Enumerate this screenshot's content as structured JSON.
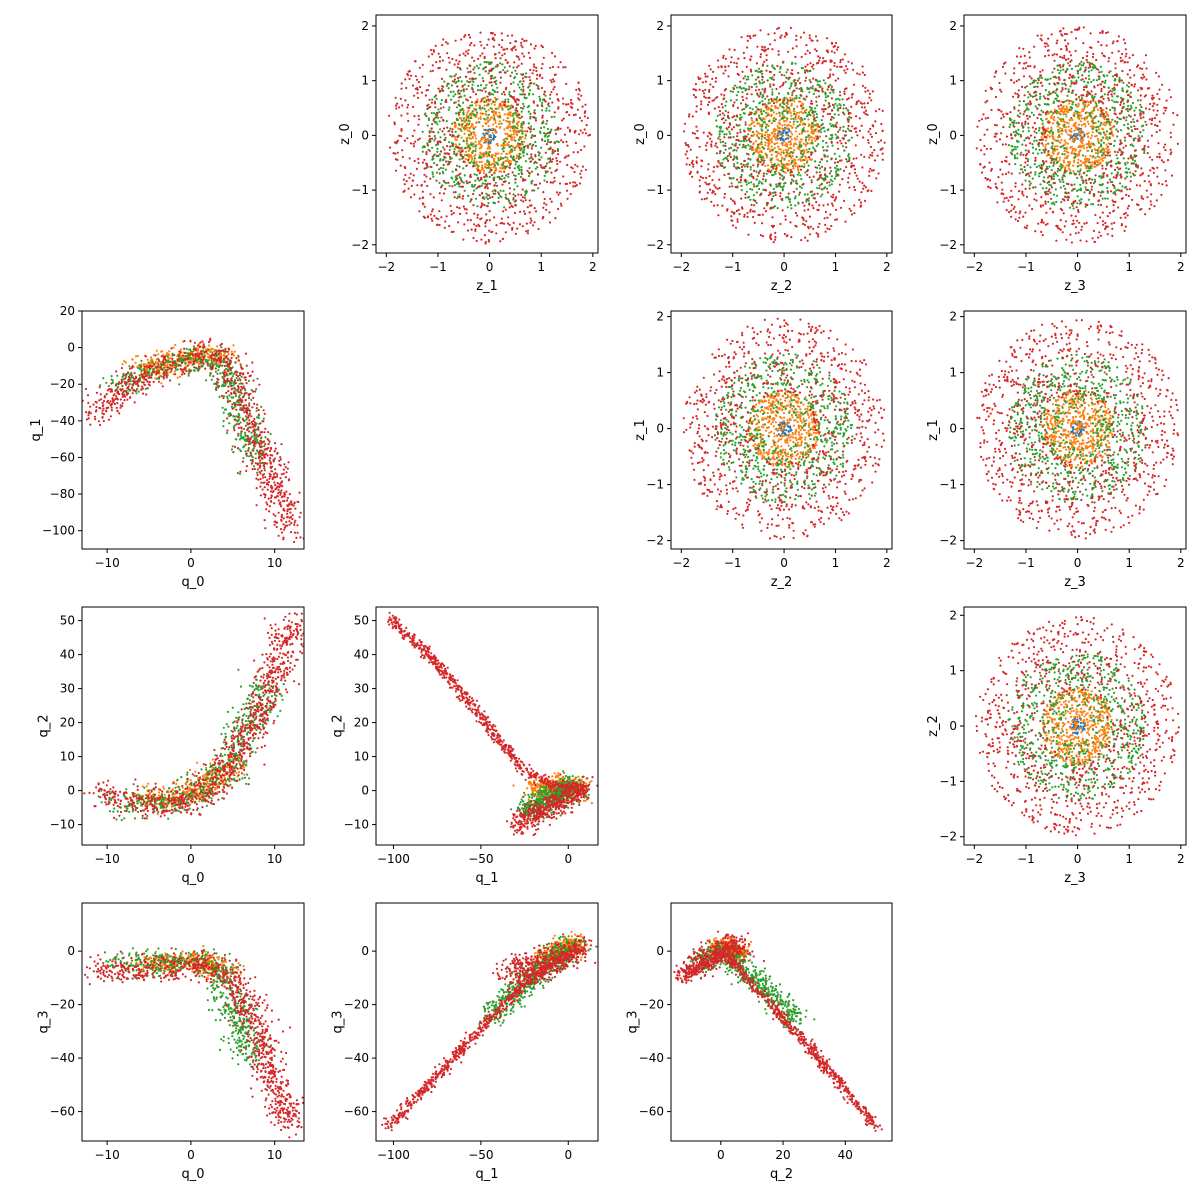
{
  "colors": {
    "series_1": "#1f77b4",
    "series_2": "#ff7f0e",
    "series_3": "#2ca02c",
    "series_4": "#d62728"
  },
  "chart_data": [
    {
      "type": "scatter",
      "panel": "z_1 vs z_0",
      "distribution": "disk",
      "xlabel": "z_1",
      "ylabel": "z_0",
      "xlim": [
        -2.2,
        2.1
      ],
      "ylim": [
        -2.15,
        2.2
      ],
      "xticks": [
        -2,
        -1,
        0,
        1,
        2
      ],
      "yticks": [
        -2,
        -1,
        0,
        1,
        2
      ],
      "series": [
        {
          "color": "#1f77b4",
          "radius": [
            0,
            0.15
          ],
          "count": 40
        },
        {
          "color": "#ff7f0e",
          "radius": [
            0,
            0.7
          ],
          "count": 500
        },
        {
          "color": "#2ca02c",
          "radius": [
            0.3,
            1.35
          ],
          "count": 700
        },
        {
          "color": "#d62728",
          "radius": [
            0.6,
            1.98
          ],
          "count": 900
        }
      ]
    },
    {
      "type": "scatter",
      "panel": "z_2 vs z_0",
      "distribution": "disk",
      "xlabel": "z_2",
      "ylabel": "z_0",
      "xlim": [
        -2.2,
        2.1
      ],
      "ylim": [
        -2.15,
        2.2
      ],
      "xticks": [
        -2,
        -1,
        0,
        1,
        2
      ],
      "yticks": [
        -2,
        -1,
        0,
        1,
        2
      ],
      "series": [
        {
          "color": "#1f77b4",
          "radius": [
            0,
            0.15
          ],
          "count": 40
        },
        {
          "color": "#ff7f0e",
          "radius": [
            0,
            0.7
          ],
          "count": 500
        },
        {
          "color": "#2ca02c",
          "radius": [
            0.3,
            1.35
          ],
          "count": 700
        },
        {
          "color": "#d62728",
          "radius": [
            0.6,
            1.98
          ],
          "count": 900
        }
      ]
    },
    {
      "type": "scatter",
      "panel": "z_3 vs z_0",
      "distribution": "disk",
      "xlabel": "z_3",
      "ylabel": "z_0",
      "xlim": [
        -2.2,
        2.1
      ],
      "ylim": [
        -2.15,
        2.2
      ],
      "xticks": [
        -2,
        -1,
        0,
        1,
        2
      ],
      "yticks": [
        -2,
        -1,
        0,
        1,
        2
      ],
      "series": [
        {
          "color": "#1f77b4",
          "radius": [
            0,
            0.15
          ],
          "count": 40
        },
        {
          "color": "#ff7f0e",
          "radius": [
            0,
            0.7
          ],
          "count": 500
        },
        {
          "color": "#2ca02c",
          "radius": [
            0.3,
            1.35
          ],
          "count": 700
        },
        {
          "color": "#d62728",
          "radius": [
            0.6,
            1.98
          ],
          "count": 900
        }
      ]
    },
    {
      "type": "scatter",
      "panel": "q_0 vs q_1",
      "distribution": "polyline-band",
      "xlabel": "q_0",
      "ylabel": "q_1",
      "xlim": [
        -13,
        13.5
      ],
      "ylim": [
        -110,
        20
      ],
      "xticks": [
        -10,
        0,
        10
      ],
      "yticks": [
        -100,
        -80,
        -60,
        -40,
        -20,
        0,
        20
      ],
      "series": [
        {
          "color": "#ff7f0e",
          "count": 350,
          "path": [
            [
              -6,
              -12
            ],
            [
              -3,
              -8
            ],
            [
              0,
              -5
            ],
            [
              2,
              -3
            ],
            [
              4,
              -6
            ]
          ],
          "spread": [
            2.0,
            5
          ]
        },
        {
          "color": "#2ca02c",
          "count": 550,
          "path": [
            [
              -9,
              -22
            ],
            [
              -5,
              -13
            ],
            [
              0,
              -7
            ],
            [
              3,
              -5
            ],
            [
              5,
              -22
            ],
            [
              7,
              -48
            ],
            [
              8,
              -65
            ]
          ],
          "spread": [
            1.8,
            6
          ]
        },
        {
          "color": "#d62728",
          "count": 900,
          "path": [
            [
              -11.5,
              -38
            ],
            [
              -8,
              -22
            ],
            [
              -4,
              -12
            ],
            [
              0,
              -6
            ],
            [
              3,
              -3
            ],
            [
              5,
              -12
            ],
            [
              7,
              -40
            ],
            [
              9,
              -65
            ],
            [
              12,
              -100
            ]
          ],
          "spread": [
            1.8,
            6
          ]
        }
      ]
    },
    {
      "type": "scatter",
      "panel": "z_2 vs z_1",
      "distribution": "disk",
      "xlabel": "z_2",
      "ylabel": "z_1",
      "xlim": [
        -2.2,
        2.1
      ],
      "ylim": [
        -2.15,
        2.1
      ],
      "xticks": [
        -2,
        -1,
        0,
        1,
        2
      ],
      "yticks": [
        -2,
        -1,
        0,
        1,
        2
      ],
      "series": [
        {
          "color": "#1f77b4",
          "radius": [
            0,
            0.15
          ],
          "count": 40
        },
        {
          "color": "#ff7f0e",
          "radius": [
            0,
            0.7
          ],
          "count": 500
        },
        {
          "color": "#2ca02c",
          "radius": [
            0.3,
            1.35
          ],
          "count": 700
        },
        {
          "color": "#d62728",
          "radius": [
            0.6,
            1.98
          ],
          "count": 900
        }
      ]
    },
    {
      "type": "scatter",
      "panel": "z_3 vs z_1",
      "distribution": "disk",
      "xlabel": "z_3",
      "ylabel": "z_1",
      "xlim": [
        -2.2,
        2.1
      ],
      "ylim": [
        -2.15,
        2.1
      ],
      "xticks": [
        -2,
        -1,
        0,
        1,
        2
      ],
      "yticks": [
        -2,
        -1,
        0,
        1,
        2
      ],
      "series": [
        {
          "color": "#1f77b4",
          "radius": [
            0,
            0.15
          ],
          "count": 40
        },
        {
          "color": "#ff7f0e",
          "radius": [
            0,
            0.7
          ],
          "count": 500
        },
        {
          "color": "#2ca02c",
          "radius": [
            0.3,
            1.35
          ],
          "count": 700
        },
        {
          "color": "#d62728",
          "radius": [
            0.6,
            1.98
          ],
          "count": 900
        }
      ]
    },
    {
      "type": "scatter",
      "panel": "q_0 vs q_2",
      "distribution": "polyline-band",
      "xlabel": "q_0",
      "ylabel": "q_2",
      "xlim": [
        -13,
        13.5
      ],
      "ylim": [
        -16,
        54
      ],
      "xticks": [
        -10,
        0,
        10
      ],
      "yticks": [
        -10,
        0,
        10,
        20,
        30,
        40,
        50
      ],
      "series": [
        {
          "color": "#ff7f0e",
          "count": 350,
          "path": [
            [
              -6,
              -2
            ],
            [
              -2,
              -2
            ],
            [
              2,
              2
            ],
            [
              5,
              8
            ]
          ],
          "spread": [
            2.0,
            3
          ]
        },
        {
          "color": "#2ca02c",
          "count": 550,
          "path": [
            [
              -9,
              -3
            ],
            [
              -4,
              -4
            ],
            [
              0,
              -2
            ],
            [
              4,
              6
            ],
            [
              7,
              20
            ],
            [
              9,
              32
            ]
          ],
          "spread": [
            2.0,
            3.5
          ]
        },
        {
          "color": "#d62728",
          "count": 900,
          "path": [
            [
              -11,
              -1
            ],
            [
              -6,
              -4
            ],
            [
              0,
              -3
            ],
            [
              4,
              5
            ],
            [
              8,
              22
            ],
            [
              11,
              40
            ],
            [
              12,
              50
            ]
          ],
          "spread": [
            2.0,
            3.5
          ]
        }
      ]
    },
    {
      "type": "scatter",
      "panel": "q_1 vs q_2",
      "distribution": "polyline-band",
      "xlabel": "q_1",
      "ylabel": "q_2",
      "xlim": [
        -110,
        17
      ],
      "ylim": [
        -16,
        54
      ],
      "xticks": [
        -100,
        -50,
        0
      ],
      "yticks": [
        -10,
        0,
        10,
        20,
        30,
        40,
        50
      ],
      "series": [
        {
          "color": "#ff7f0e",
          "count": 350,
          "path": [
            [
              -20,
              0
            ],
            [
              -5,
              2
            ],
            [
              8,
              0
            ]
          ],
          "spread": [
            6,
            2.5
          ]
        },
        {
          "color": "#2ca02c",
          "count": 550,
          "path": [
            [
              -25,
              -6
            ],
            [
              -10,
              -2
            ],
            [
              5,
              1
            ]
          ],
          "spread": [
            6,
            3
          ]
        },
        {
          "color": "#d62728",
          "count": 650,
          "path": [
            [
              -103,
              51
            ],
            [
              -80,
              40
            ],
            [
              -60,
              28
            ],
            [
              -40,
              15
            ],
            [
              -25,
              6
            ],
            [
              -10,
              2
            ],
            [
              10,
              0
            ]
          ],
          "spread": [
            2.5,
            1.5
          ]
        },
        {
          "color": "#d62728",
          "count": 450,
          "path": [
            [
              -30,
              -10
            ],
            [
              -15,
              -6
            ],
            [
              0,
              -2
            ],
            [
              10,
              1
            ]
          ],
          "spread": [
            5,
            3
          ]
        }
      ]
    },
    {
      "type": "scatter",
      "panel": "z_3 vs z_2",
      "distribution": "disk",
      "xlabel": "z_3",
      "ylabel": "z_2",
      "xlim": [
        -2.2,
        2.1
      ],
      "ylim": [
        -2.15,
        2.15
      ],
      "xticks": [
        -2,
        -1,
        0,
        1,
        2
      ],
      "yticks": [
        -2,
        -1,
        0,
        1,
        2
      ],
      "series": [
        {
          "color": "#1f77b4",
          "radius": [
            0,
            0.15
          ],
          "count": 40
        },
        {
          "color": "#ff7f0e",
          "radius": [
            0,
            0.7
          ],
          "count": 500
        },
        {
          "color": "#2ca02c",
          "radius": [
            0.3,
            1.35
          ],
          "count": 700
        },
        {
          "color": "#d62728",
          "radius": [
            0.6,
            1.98
          ],
          "count": 900
        }
      ]
    },
    {
      "type": "scatter",
      "panel": "q_0 vs q_3",
      "distribution": "polyline-band",
      "xlabel": "q_0",
      "ylabel": "q_3",
      "xlim": [
        -13,
        13.5
      ],
      "ylim": [
        -71,
        18
      ],
      "xticks": [
        -10,
        0,
        10
      ],
      "yticks": [
        -60,
        -40,
        -20,
        0
      ],
      "series": [
        {
          "color": "#ff7f0e",
          "count": 350,
          "path": [
            [
              -6,
              -5
            ],
            [
              -2,
              -4
            ],
            [
              1,
              -3
            ],
            [
              4,
              -8
            ]
          ],
          "spread": [
            2.0,
            3
          ]
        },
        {
          "color": "#2ca02c",
          "count": 550,
          "path": [
            [
              -9,
              -4
            ],
            [
              -4,
              -5
            ],
            [
              0,
              -3
            ],
            [
              3,
              -6
            ],
            [
              5,
              -20
            ],
            [
              7,
              -40
            ]
          ],
          "spread": [
            1.8,
            4
          ]
        },
        {
          "color": "#d62728",
          "count": 900,
          "path": [
            [
              -11.5,
              -6
            ],
            [
              -7,
              -7
            ],
            [
              -2,
              -6
            ],
            [
              2,
              -5
            ],
            [
              5,
              -10
            ],
            [
              8,
              -30
            ],
            [
              10,
              -50
            ],
            [
              12,
              -65
            ]
          ],
          "spread": [
            1.8,
            4
          ]
        }
      ]
    },
    {
      "type": "scatter",
      "panel": "q_1 vs q_3",
      "distribution": "polyline-band",
      "xlabel": "q_1",
      "ylabel": "q_3",
      "xlim": [
        -110,
        17
      ],
      "ylim": [
        -71,
        18
      ],
      "xticks": [
        -100,
        -50,
        0
      ],
      "yticks": [
        -60,
        -40,
        -20,
        0
      ],
      "series": [
        {
          "color": "#ff7f0e",
          "count": 350,
          "path": [
            [
              -15,
              -3
            ],
            [
              -5,
              0
            ],
            [
              5,
              3
            ]
          ],
          "spread": [
            6,
            3
          ]
        },
        {
          "color": "#2ca02c",
          "count": 550,
          "path": [
            [
              -45,
              -25
            ],
            [
              -25,
              -12
            ],
            [
              -10,
              -4
            ],
            [
              5,
              3
            ]
          ],
          "spread": [
            6,
            4
          ]
        },
        {
          "color": "#d62728",
          "count": 700,
          "path": [
            [
              -104,
              -66
            ],
            [
              -80,
              -50
            ],
            [
              -60,
              -36
            ],
            [
              -40,
              -22
            ],
            [
              -25,
              -12
            ],
            [
              -10,
              -5
            ],
            [
              10,
              2
            ]
          ],
          "spread": [
            2.5,
            2
          ]
        },
        {
          "color": "#d62728",
          "count": 400,
          "path": [
            [
              -35,
              -8
            ],
            [
              -20,
              -6
            ],
            [
              -5,
              -3
            ],
            [
              8,
              0
            ]
          ],
          "spread": [
            6,
            5
          ]
        }
      ]
    },
    {
      "type": "scatter",
      "panel": "q_2 vs q_3",
      "distribution": "polyline-band",
      "xlabel": "q_2",
      "ylabel": "q_3",
      "xlim": [
        -16,
        55
      ],
      "ylim": [
        -71,
        18
      ],
      "xticks": [
        0,
        20,
        40
      ],
      "yticks": [
        -60,
        -40,
        -20,
        0
      ],
      "series": [
        {
          "color": "#ff7f0e",
          "count": 350,
          "path": [
            [
              -2,
              0
            ],
            [
              2,
              2
            ],
            [
              6,
              -2
            ]
          ],
          "spread": [
            3,
            3
          ]
        },
        {
          "color": "#2ca02c",
          "count": 550,
          "path": [
            [
              -8,
              -5
            ],
            [
              0,
              0
            ],
            [
              8,
              -8
            ],
            [
              16,
              -16
            ],
            [
              24,
              -26
            ]
          ],
          "spread": [
            3,
            4
          ]
        },
        {
          "color": "#d62728",
          "count": 700,
          "path": [
            [
              -13,
              -10
            ],
            [
              -5,
              -5
            ],
            [
              2,
              -2
            ],
            [
              10,
              -12
            ],
            [
              20,
              -25
            ],
            [
              30,
              -38
            ],
            [
              40,
              -52
            ],
            [
              50,
              -66
            ]
          ],
          "spread": [
            1.5,
            1.5
          ]
        },
        {
          "color": "#d62728",
          "count": 400,
          "path": [
            [
              -12,
              -8
            ],
            [
              -5,
              -3
            ],
            [
              3,
              2
            ],
            [
              8,
              0
            ]
          ],
          "spread": [
            3,
            4
          ]
        }
      ]
    }
  ]
}
